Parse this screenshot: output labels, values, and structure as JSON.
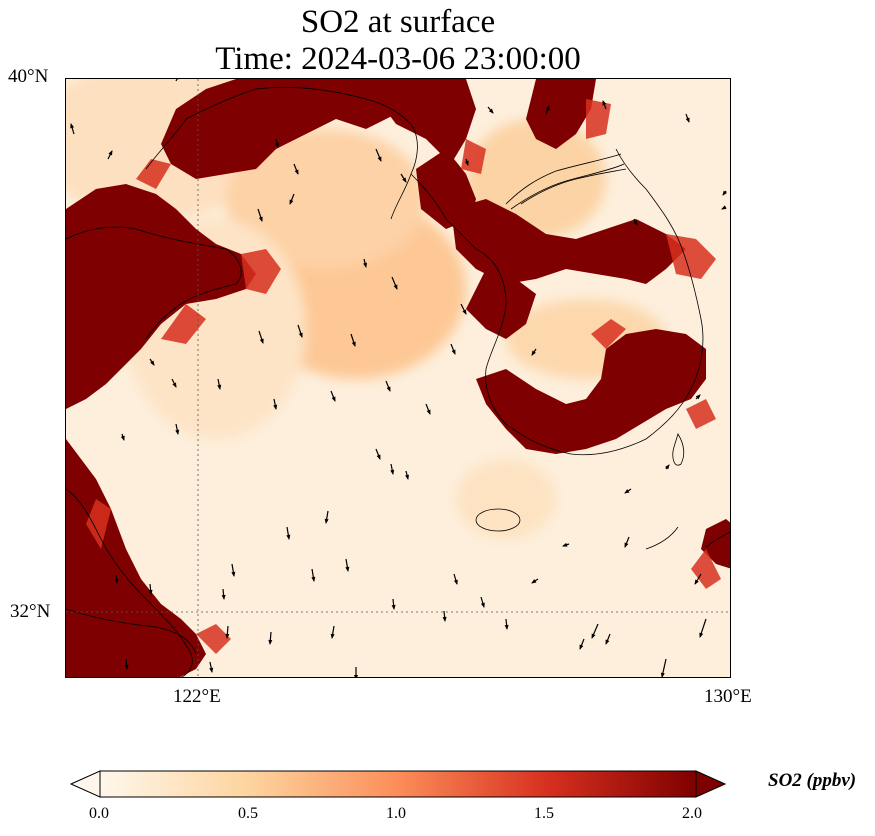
{
  "title": {
    "line1": "SO2 at surface",
    "line2": "Time: 2024-03-06 23:00:00"
  },
  "map": {
    "lat_labels": [
      "40°N",
      "32°N"
    ],
    "lon_labels": [
      "122°E",
      "130°E"
    ],
    "gridlines": "dotted",
    "field": "SO2 concentration with wind vectors"
  },
  "colorbar": {
    "label": "SO2 (ppbv)",
    "ticks": [
      "0.0",
      "0.5",
      "1.0",
      "1.5",
      "2.0"
    ],
    "range": [
      0,
      2
    ],
    "colormap": "OrRd",
    "extend": "both",
    "colors": [
      "#fff7ec",
      "#fdd49e",
      "#fc8d59",
      "#d7301f",
      "#7f0000"
    ]
  }
}
